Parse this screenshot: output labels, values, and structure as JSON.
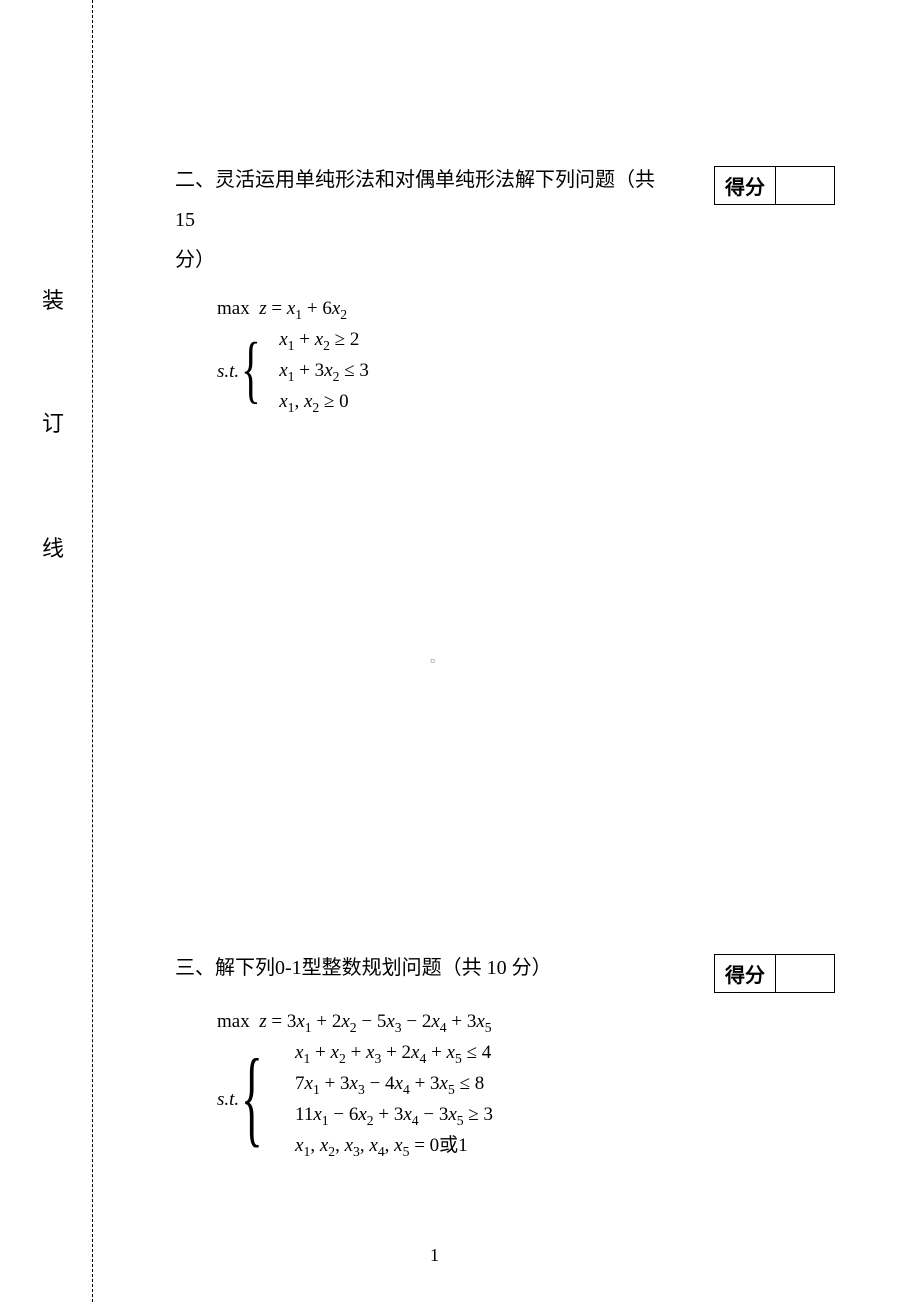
{
  "binding": {
    "char1": "装",
    "char2": "订",
    "char3": "线"
  },
  "score_label": "得分",
  "page_number": "1",
  "center_mark": "▫",
  "problem2": {
    "title_a": "二、灵活运用单纯形法和对偶单纯形法解下列问题（共 15",
    "title_b": "分）",
    "obj_prefix": "max",
    "obj": "z = x₁ + 6x₂",
    "st": "s.t.",
    "c1": "x₁ + x₂ ≥ 2",
    "c2": "x₁ + 3x₂ ≤ 3",
    "c3": "x₁, x₂ ≥ 0"
  },
  "problem3": {
    "title": "三、解下列0-1型整数规划问题（共 10 分）",
    "obj_prefix": "max",
    "obj": "z = 3x₁ + 2x₂ − 5x₃ − 2x₄ + 3x₅",
    "st": "s.t.",
    "c1": "x₁ + x₂ + x₃ + 2x₄ + x₅ ≤ 4",
    "c2": "7x₁ + 3x₃ − 4x₄ + 3x₅ ≤ 8",
    "c3": "11x₁ − 6x₂ + 3x₄ − 3x₅ ≥ 3",
    "c4_a": "x₁, x₂, x₃, x₄, x₅ = 0",
    "c4_b": "或",
    "c4_c": "1"
  }
}
